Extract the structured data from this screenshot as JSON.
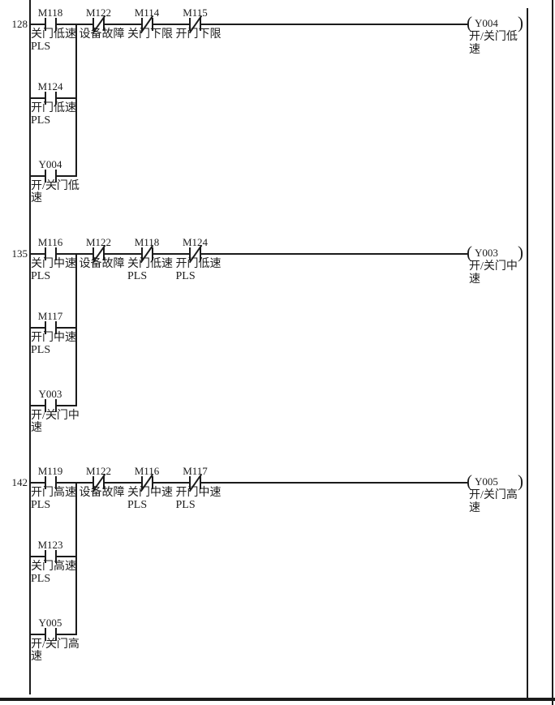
{
  "diagram": {
    "background": "#ffffff",
    "line_color": "#1b1b1b",
    "coil_glyph_open": "(",
    "coil_glyph_close": ")",
    "rungs": [
      {
        "number": "128",
        "contacts": [
          {
            "device": "M118",
            "type": "no",
            "desc": [
              "关门低速",
              "PLS"
            ]
          },
          {
            "device": "M122",
            "type": "nc",
            "desc": [
              "设备故障"
            ]
          },
          {
            "device": "M114",
            "type": "nc",
            "desc": [
              "关门下限"
            ]
          },
          {
            "device": "M115",
            "type": "nc",
            "desc": [
              "开门下限"
            ]
          }
        ],
        "branches": [
          {
            "device": "M124",
            "type": "no",
            "desc": [
              "开门低速",
              "PLS"
            ]
          },
          {
            "device": "Y004",
            "type": "no",
            "desc": [
              "开/关门低",
              "速"
            ]
          }
        ],
        "coil": {
          "device": "Y004",
          "desc": [
            "开/关门低",
            "速"
          ]
        }
      },
      {
        "number": "135",
        "contacts": [
          {
            "device": "M116",
            "type": "no",
            "desc": [
              "关门中速",
              "PLS"
            ]
          },
          {
            "device": "M122",
            "type": "nc",
            "desc": [
              "设备故障"
            ]
          },
          {
            "device": "M118",
            "type": "nc",
            "desc": [
              "关门低速",
              "PLS"
            ]
          },
          {
            "device": "M124",
            "type": "nc",
            "desc": [
              "开门低速",
              "PLS"
            ]
          }
        ],
        "branches": [
          {
            "device": "M117",
            "type": "no",
            "desc": [
              "开门中速",
              "PLS"
            ]
          },
          {
            "device": "Y003",
            "type": "no",
            "desc": [
              "开/关门中",
              "速"
            ]
          }
        ],
        "coil": {
          "device": "Y003",
          "desc": [
            "开/关门中",
            "速"
          ]
        }
      },
      {
        "number": "142",
        "contacts": [
          {
            "device": "M119",
            "type": "no",
            "desc": [
              "开门高速",
              "PLS"
            ]
          },
          {
            "device": "M122",
            "type": "nc",
            "desc": [
              "设备故障"
            ]
          },
          {
            "device": "M116",
            "type": "nc",
            "desc": [
              "关门中速",
              "PLS"
            ]
          },
          {
            "device": "M117",
            "type": "nc",
            "desc": [
              "开门中速",
              "PLS"
            ]
          }
        ],
        "branches": [
          {
            "device": "M123",
            "type": "no",
            "desc": [
              "关门高速",
              "PLS"
            ]
          },
          {
            "device": "Y005",
            "type": "no",
            "desc": [
              "开/关门高",
              "速"
            ]
          }
        ],
        "coil": {
          "device": "Y005",
          "desc": [
            "开/关门高",
            "速"
          ]
        }
      }
    ]
  }
}
